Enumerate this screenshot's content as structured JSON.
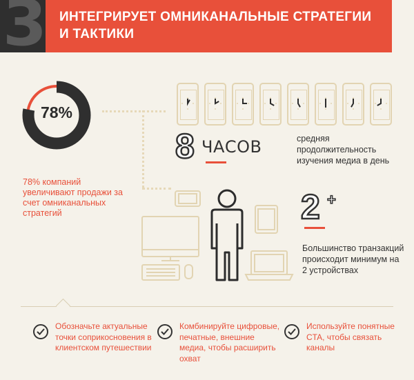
{
  "header": {
    "number": "3",
    "title": "ИНТЕГРИРУЕТ ОМНИКАНАЛЬНЫЕ СТРАТЕГИИ И ТАКТИКИ"
  },
  "stat": {
    "percent": 78,
    "percent_label": "78%",
    "description": "78% компаний увеличивают продажи за счет омниканальных стратегий"
  },
  "hours": {
    "value": "8",
    "unit": "ЧАСОВ",
    "description": "средняя продолжительность изучения медиа в день"
  },
  "devices": {
    "value": "2",
    "suffix": "+",
    "description": "Большинство транзакций происходит минимум на 2 устройствах"
  },
  "tips": [
    {
      "text": "Обозначьте актуальные точки соприкосновения в клиентском путешествии"
    },
    {
      "text": "Комбинируйте цифровые, печатные, внешние медиа, чтобы расширить охват"
    },
    {
      "text": "Используйте понятные CTA, чтобы связать каналы"
    }
  ],
  "colors": {
    "accent": "#e8503a",
    "dark": "#2f2f2f",
    "background": "#f5f2ea",
    "line_art": "#e2d4b2"
  },
  "icons": {
    "phone_clock": "phone-clock-icon",
    "person": "person-icon",
    "desktop": "desktop-computer-icon",
    "laptop": "laptop-icon",
    "tablet": "tablet-icon",
    "check": "check-circle-icon"
  }
}
